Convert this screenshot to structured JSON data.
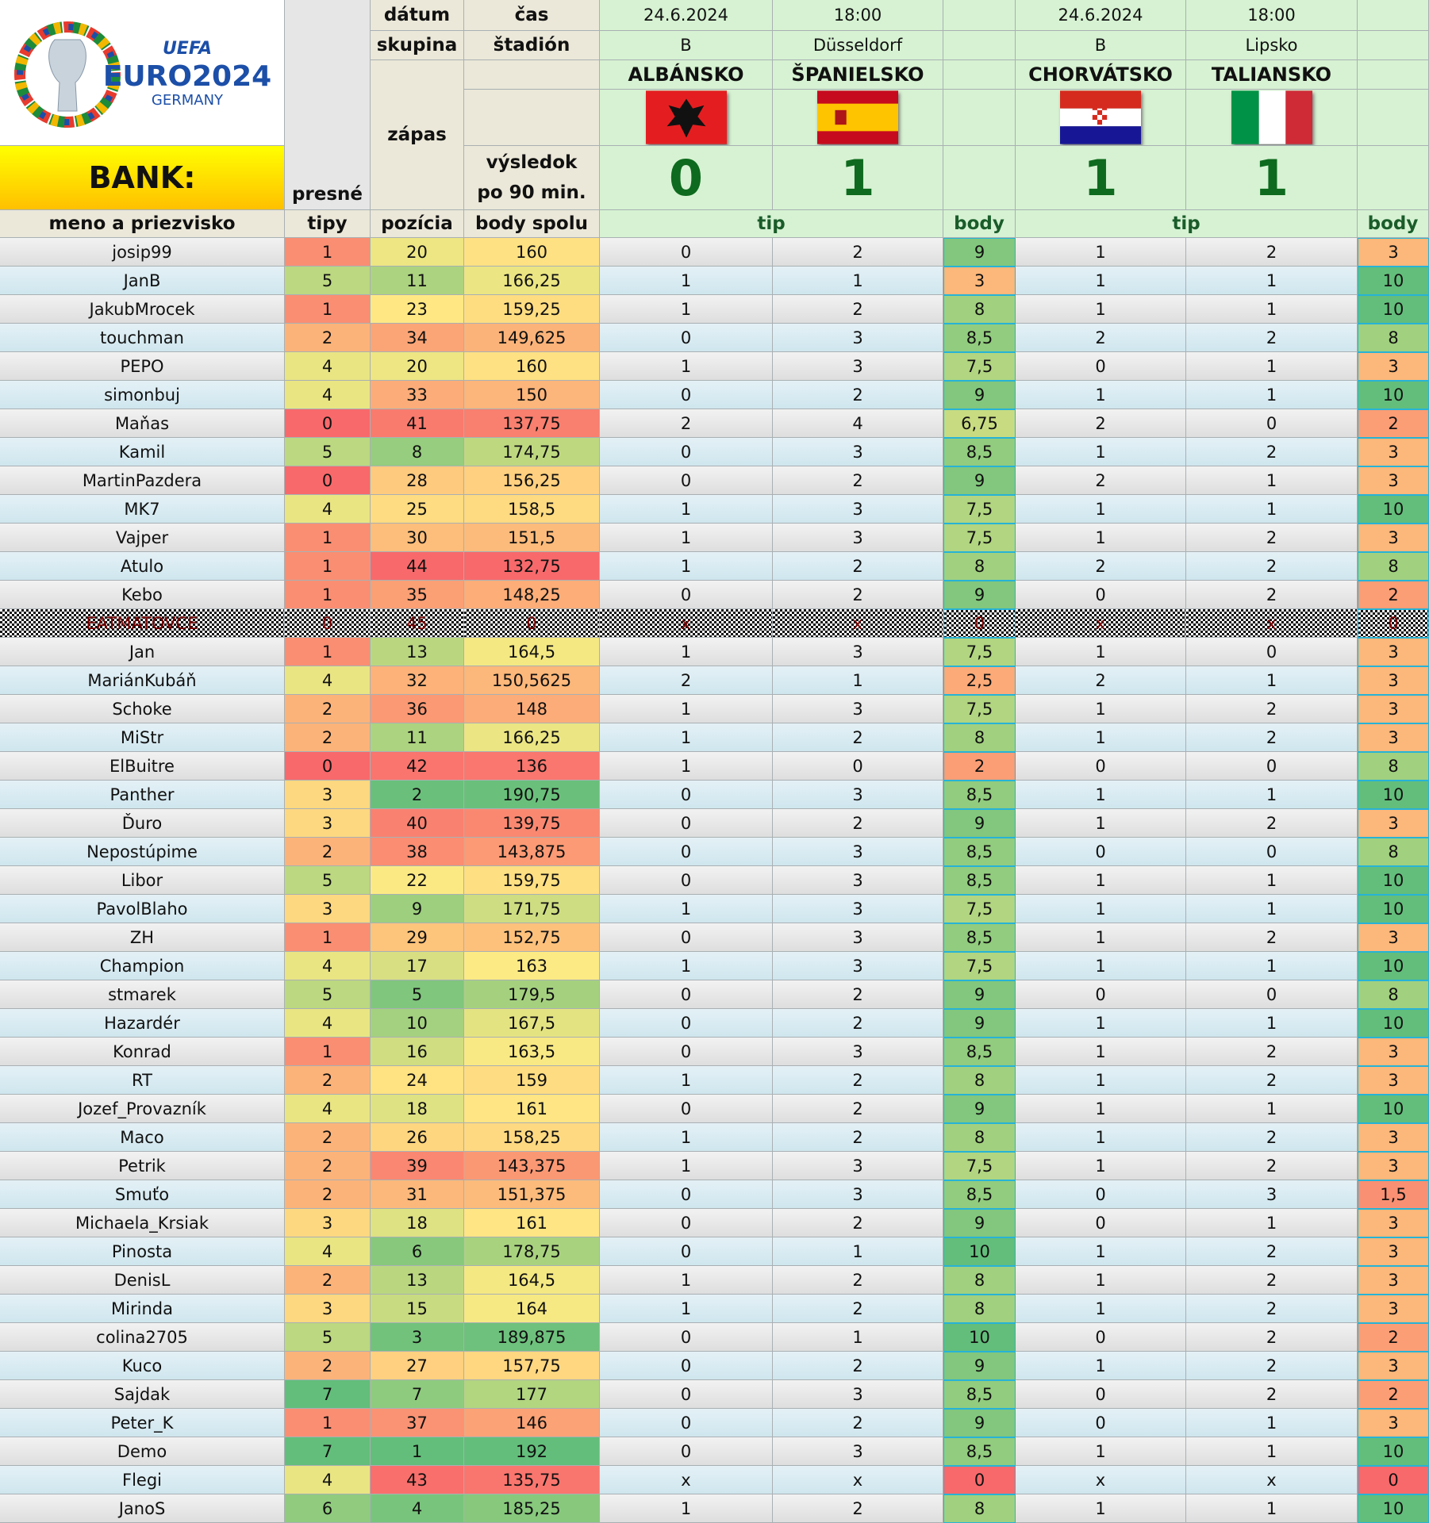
{
  "logo": {
    "uefa": "UEFA",
    "euro": "EURO2024",
    "country": "GERMANY"
  },
  "header": {
    "bank": "BANK:",
    "name": "meno a priezvisko",
    "exact_1": "presné",
    "exact_2": "tipy",
    "date": "dátum",
    "time": "čas",
    "group": "skupina",
    "stadium": "štadión",
    "match": "zápas",
    "result_1": "výsledok",
    "result_2": "po 90 min.",
    "position": "pozícia",
    "total": "body spolu",
    "tip": "tip",
    "points": "body"
  },
  "matches": [
    {
      "date": "24.6.2024",
      "time": "18:00",
      "group": "B",
      "stadium": "Düsseldorf",
      "home": "ALBÁNSKO",
      "away": "ŠPANIELSKO",
      "home_score": "0",
      "away_score": "1"
    },
    {
      "date": "24.6.2024",
      "time": "18:00",
      "group": "B",
      "stadium": "Lipsko",
      "home": "CHORVÁTSKO",
      "away": "TALIANSKO",
      "home_score": "1",
      "away_score": "1"
    }
  ],
  "rows": [
    [
      "josip99",
      "1",
      "20",
      "160",
      "0",
      "2",
      "9",
      "1",
      "2",
      "3"
    ],
    [
      "JanB",
      "5",
      "11",
      "166,25",
      "1",
      "1",
      "3",
      "1",
      "1",
      "10"
    ],
    [
      "JakubMrocek",
      "1",
      "23",
      "159,25",
      "1",
      "2",
      "8",
      "1",
      "1",
      "10"
    ],
    [
      "touchman",
      "2",
      "34",
      "149,625",
      "0",
      "3",
      "8,5",
      "2",
      "2",
      "8"
    ],
    [
      "PEPO",
      "4",
      "20",
      "160",
      "1",
      "3",
      "7,5",
      "0",
      "1",
      "3"
    ],
    [
      "simonbuj",
      "4",
      "33",
      "150",
      "0",
      "2",
      "9",
      "1",
      "1",
      "10"
    ],
    [
      "Maňas",
      "0",
      "41",
      "137,75",
      "2",
      "4",
      "6,75",
      "2",
      "0",
      "2"
    ],
    [
      "Kamil",
      "5",
      "8",
      "174,75",
      "0",
      "3",
      "8,5",
      "1",
      "2",
      "3"
    ],
    [
      "MartinPazdera",
      "0",
      "28",
      "156,25",
      "0",
      "2",
      "9",
      "2",
      "1",
      "3"
    ],
    [
      "MK7",
      "4",
      "25",
      "158,5",
      "1",
      "3",
      "7,5",
      "1",
      "1",
      "10"
    ],
    [
      "Vajper",
      "1",
      "30",
      "151,5",
      "1",
      "3",
      "7,5",
      "1",
      "2",
      "3"
    ],
    [
      "Atulo",
      "1",
      "44",
      "132,75",
      "1",
      "2",
      "8",
      "2",
      "2",
      "8"
    ],
    [
      "Kebo",
      "1",
      "35",
      "148,25",
      "0",
      "2",
      "9",
      "0",
      "2",
      "2"
    ],
    [
      "EATMATOVCE",
      "0",
      "45",
      "0",
      "x",
      "x",
      "0",
      "x",
      "x",
      "0"
    ],
    [
      "Jan",
      "1",
      "13",
      "164,5",
      "1",
      "3",
      "7,5",
      "1",
      "0",
      "3"
    ],
    [
      "MariánKubáň",
      "4",
      "32",
      "150,5625",
      "2",
      "1",
      "2,5",
      "2",
      "1",
      "3"
    ],
    [
      "Schoke",
      "2",
      "36",
      "148",
      "1",
      "3",
      "7,5",
      "1",
      "2",
      "3"
    ],
    [
      "MiStr",
      "2",
      "11",
      "166,25",
      "1",
      "2",
      "8",
      "1",
      "2",
      "3"
    ],
    [
      "ElBuitre",
      "0",
      "42",
      "136",
      "1",
      "0",
      "2",
      "0",
      "0",
      "8"
    ],
    [
      "Panther",
      "3",
      "2",
      "190,75",
      "0",
      "3",
      "8,5",
      "1",
      "1",
      "10"
    ],
    [
      "Ďuro",
      "3",
      "40",
      "139,75",
      "0",
      "2",
      "9",
      "1",
      "2",
      "3"
    ],
    [
      "Nepostúpime",
      "2",
      "38",
      "143,875",
      "0",
      "3",
      "8,5",
      "0",
      "0",
      "8"
    ],
    [
      "Libor",
      "5",
      "22",
      "159,75",
      "0",
      "3",
      "8,5",
      "1",
      "1",
      "10"
    ],
    [
      "PavolBlaho",
      "3",
      "9",
      "171,75",
      "1",
      "3",
      "7,5",
      "1",
      "1",
      "10"
    ],
    [
      "ZH",
      "1",
      "29",
      "152,75",
      "0",
      "3",
      "8,5",
      "1",
      "2",
      "3"
    ],
    [
      "Champion",
      "4",
      "17",
      "163",
      "1",
      "3",
      "7,5",
      "1",
      "1",
      "10"
    ],
    [
      "stmarek",
      "5",
      "5",
      "179,5",
      "0",
      "2",
      "9",
      "0",
      "0",
      "8"
    ],
    [
      "Hazardér",
      "4",
      "10",
      "167,5",
      "0",
      "2",
      "9",
      "1",
      "1",
      "10"
    ],
    [
      "Konrad",
      "1",
      "16",
      "163,5",
      "0",
      "3",
      "8,5",
      "1",
      "2",
      "3"
    ],
    [
      "RT",
      "2",
      "24",
      "159",
      "1",
      "2",
      "8",
      "1",
      "2",
      "3"
    ],
    [
      "Jozef_Provazník",
      "4",
      "18",
      "161",
      "0",
      "2",
      "9",
      "1",
      "1",
      "10"
    ],
    [
      "Maco",
      "2",
      "26",
      "158,25",
      "1",
      "2",
      "8",
      "1",
      "2",
      "3"
    ],
    [
      "Petrik",
      "2",
      "39",
      "143,375",
      "1",
      "3",
      "7,5",
      "1",
      "2",
      "3"
    ],
    [
      "Smuťo",
      "2",
      "31",
      "151,375",
      "0",
      "3",
      "8,5",
      "0",
      "3",
      "1,5"
    ],
    [
      "Michaela_Krsiak",
      "3",
      "18",
      "161",
      "0",
      "2",
      "9",
      "0",
      "1",
      "3"
    ],
    [
      "Pinosta",
      "4",
      "6",
      "178,75",
      "0",
      "1",
      "10",
      "1",
      "2",
      "3"
    ],
    [
      "DenisL",
      "2",
      "13",
      "164,5",
      "1",
      "2",
      "8",
      "1",
      "2",
      "3"
    ],
    [
      "Mirinda",
      "3",
      "15",
      "164",
      "1",
      "2",
      "8",
      "1",
      "2",
      "3"
    ],
    [
      "colina2705",
      "5",
      "3",
      "189,875",
      "0",
      "1",
      "10",
      "0",
      "2",
      "2"
    ],
    [
      "Kuco",
      "2",
      "27",
      "157,75",
      "0",
      "2",
      "9",
      "1",
      "2",
      "3"
    ],
    [
      "Sajdak",
      "7",
      "7",
      "177",
      "0",
      "3",
      "8,5",
      "0",
      "2",
      "2"
    ],
    [
      "Peter_K",
      "1",
      "37",
      "146",
      "0",
      "2",
      "9",
      "0",
      "1",
      "3"
    ],
    [
      "Demo",
      "7",
      "1",
      "192",
      "0",
      "3",
      "8,5",
      "1",
      "1",
      "10"
    ],
    [
      "Flegi",
      "4",
      "43",
      "135,75",
      "x",
      "x",
      "0",
      "x",
      "x",
      "0"
    ],
    [
      "JanoS",
      "6",
      "4",
      "185,25",
      "1",
      "2",
      "8",
      "1",
      "1",
      "10"
    ]
  ]
}
